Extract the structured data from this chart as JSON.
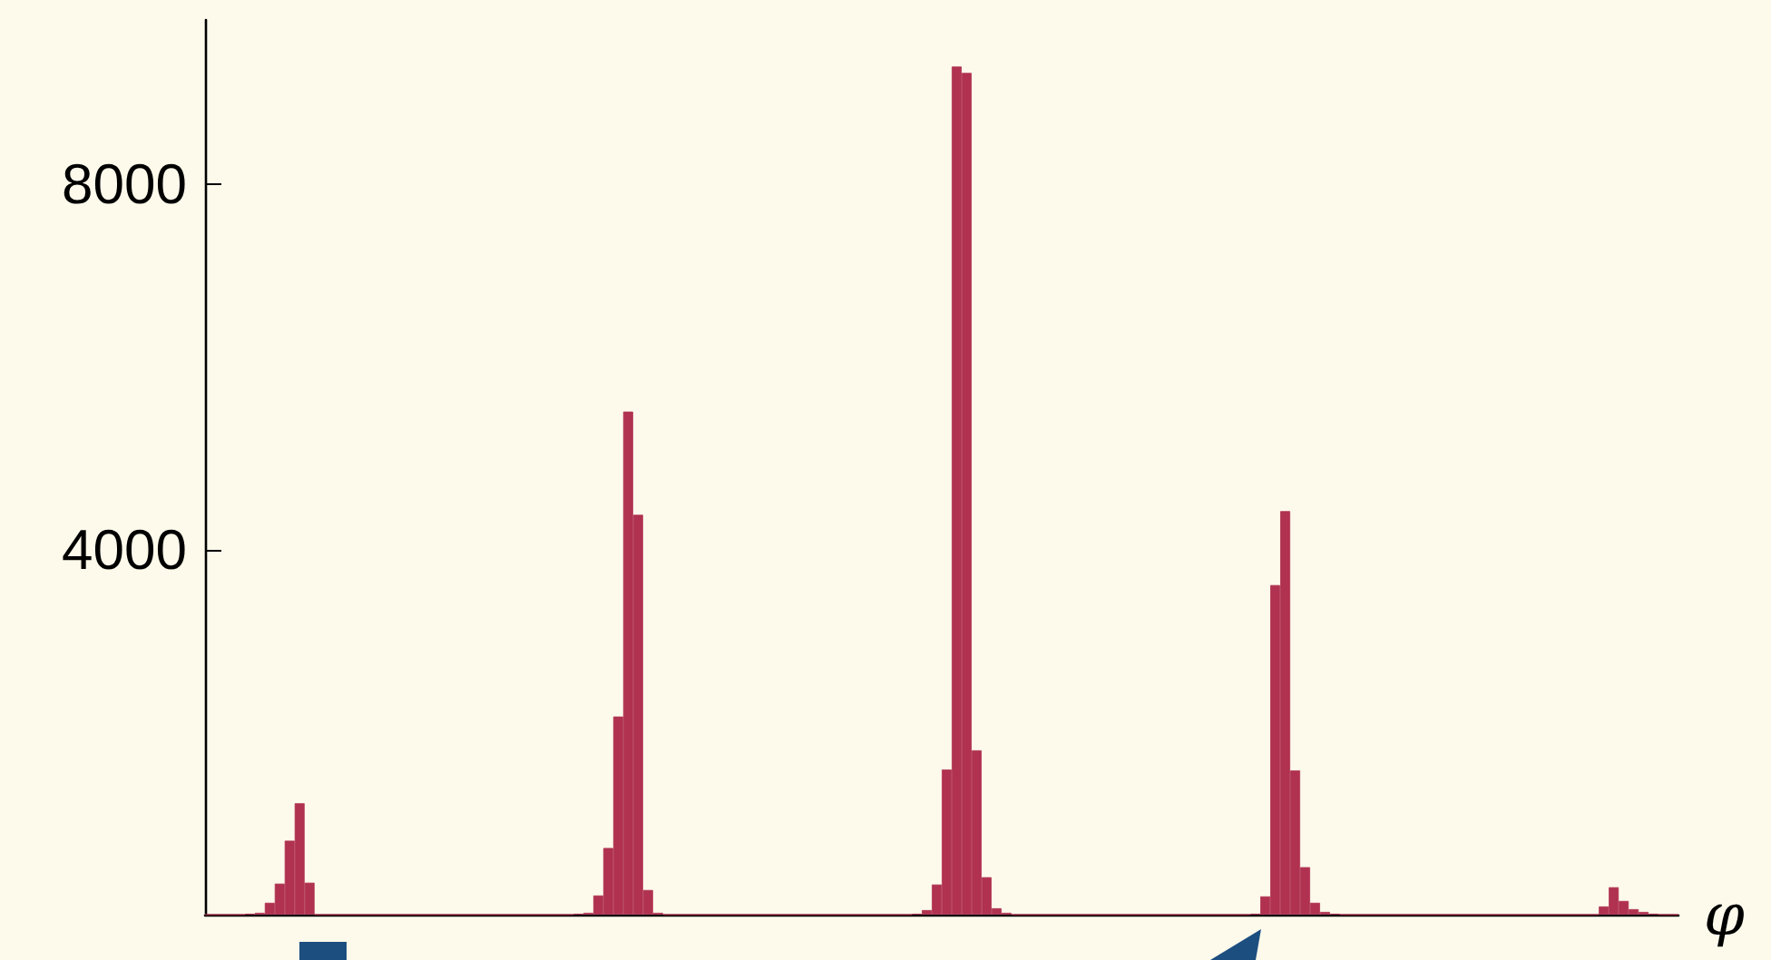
{
  "chart_data": {
    "type": "bar",
    "xlabel": "φ",
    "color": "#b03150",
    "categories": [
      null,
      null,
      null,
      null,
      null,
      null,
      null,
      null,
      null,
      null,
      null,
      null,
      null,
      null,
      null,
      null,
      null,
      null,
      null,
      null,
      null,
      null,
      null,
      null,
      null,
      null,
      null,
      null,
      null,
      null,
      null,
      null,
      null,
      null,
      null,
      null,
      null,
      null,
      null,
      null,
      null,
      null,
      null,
      null,
      null,
      null,
      null,
      null,
      null,
      null,
      null,
      null,
      null,
      null,
      null,
      null,
      null,
      null,
      null,
      null,
      null,
      null,
      null,
      null,
      null,
      null,
      null,
      null,
      null,
      null,
      null,
      null,
      null,
      null,
      null,
      null,
      null,
      null,
      null,
      null,
      null,
      null,
      null,
      null,
      null,
      null,
      null,
      null,
      null,
      null,
      null,
      null,
      null,
      null,
      null,
      null,
      null,
      null,
      null,
      null,
      null,
      null,
      null,
      null,
      null,
      null,
      null,
      null,
      null,
      null,
      null,
      null,
      null,
      null,
      null,
      null,
      null,
      null,
      null,
      null,
      null,
      null,
      null,
      null,
      null,
      null,
      null,
      null,
      null,
      null,
      null,
      null,
      null,
      null,
      null,
      null,
      null,
      null,
      null,
      null,
      null,
      null,
      null,
      null,
      null,
      null,
      null,
      null
    ],
    "values": [
      0,
      0,
      0,
      0,
      10,
      20,
      130,
      340,
      810,
      1220,
      350,
      0,
      0,
      0,
      0,
      0,
      0,
      0,
      0,
      0,
      0,
      0,
      0,
      0,
      0,
      0,
      0,
      0,
      0,
      0,
      0,
      0,
      0,
      0,
      0,
      0,
      0,
      10,
      20,
      210,
      730,
      2170,
      5510,
      4380,
      270,
      20,
      0,
      0,
      0,
      0,
      0,
      0,
      0,
      0,
      0,
      0,
      0,
      0,
      0,
      0,
      0,
      0,
      0,
      0,
      0,
      0,
      0,
      0,
      0,
      0,
      0,
      10,
      50,
      330,
      1590,
      9290,
      9220,
      1800,
      410,
      70,
      20,
      0,
      0,
      0,
      0,
      0,
      0,
      0,
      0,
      0,
      0,
      0,
      0,
      0,
      0,
      0,
      0,
      0,
      0,
      0,
      0,
      0,
      0,
      0,
      0,
      10,
      200,
      3610,
      4420,
      1580,
      520,
      130,
      30,
      10,
      0,
      0,
      0,
      0,
      0,
      0,
      0,
      0,
      0,
      0,
      0,
      0,
      0,
      0,
      0,
      0,
      0,
      0,
      0,
      0,
      0,
      0,
      0,
      0,
      0,
      0,
      90,
      300,
      150,
      60,
      30,
      10,
      0,
      0
    ],
    "ylim": [
      0,
      9800
    ],
    "yticks": [
      {
        "value": 0,
        "label": null
      },
      4000,
      8000
    ],
    "tick_labels": "y"
  }
}
